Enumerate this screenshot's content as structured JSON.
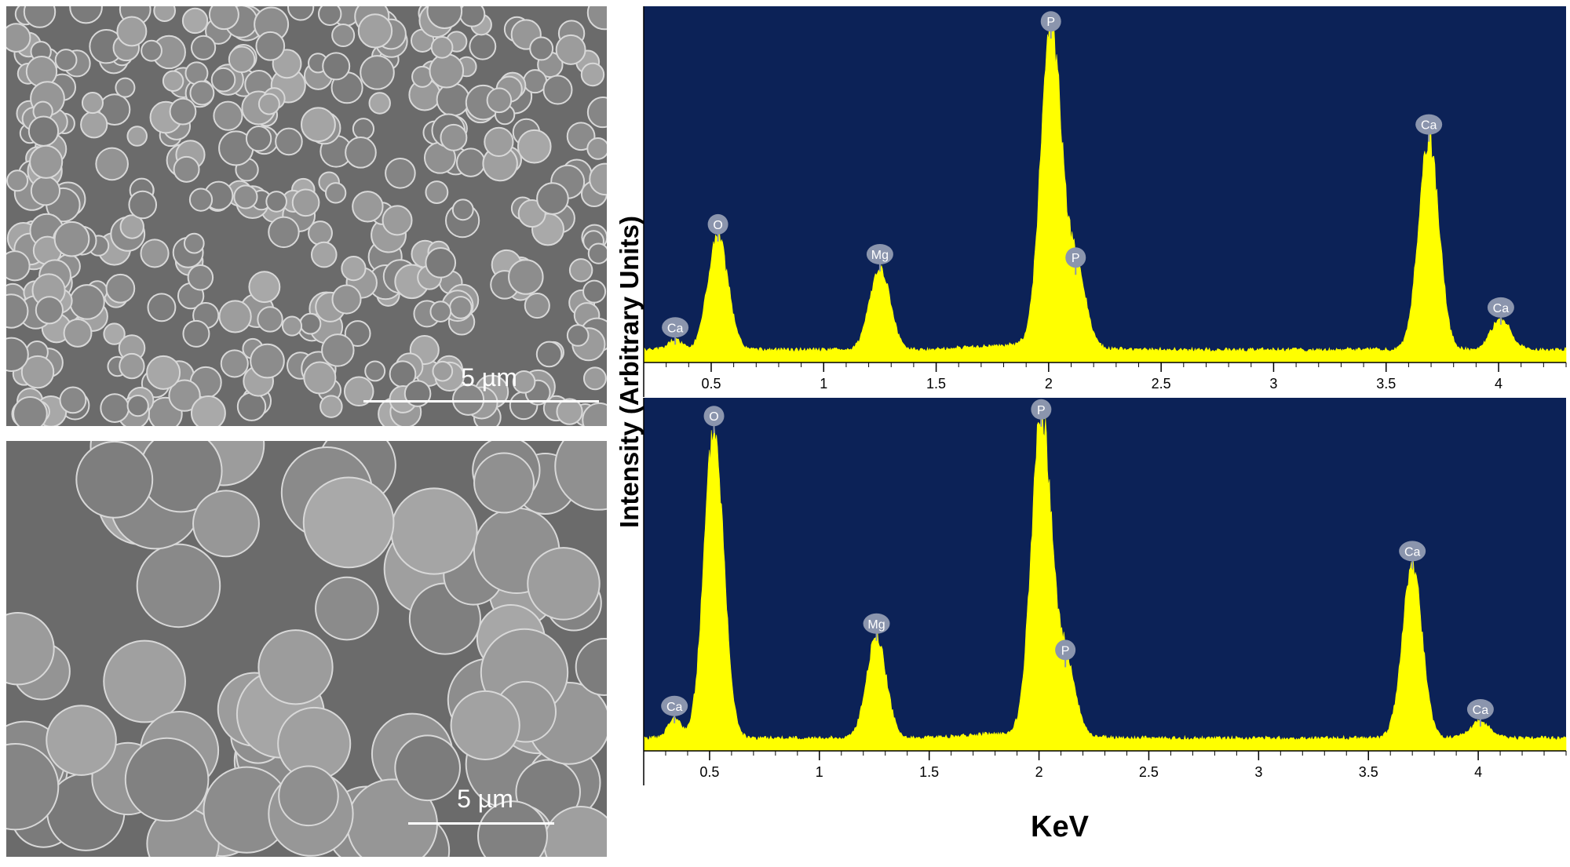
{
  "figure": {
    "ylabel": "Intensity (Arbitrary Units)",
    "xlabel": "KeV"
  },
  "sem_images": [
    {
      "scale_label": "5 µm"
    },
    {
      "scale_label": "5 µm"
    }
  ],
  "chart_data": [
    {
      "type": "area",
      "xlim": [
        0.2,
        4.3
      ],
      "ylim": [
        0,
        1
      ],
      "x_ticks": [
        "0.5",
        "1",
        "1.5",
        "2",
        "2.5",
        "3",
        "3.5",
        "4"
      ],
      "x_tick_values": [
        0.5,
        1,
        1.5,
        2,
        2.5,
        3,
        3.5,
        4
      ],
      "peaks": [
        {
          "element": "Ca",
          "x": 0.34,
          "y": 0.03
        },
        {
          "element": "O",
          "x": 0.53,
          "y": 0.34
        },
        {
          "element": "Mg",
          "x": 1.25,
          "y": 0.25
        },
        {
          "element": "P",
          "x": 2.01,
          "y": 0.95
        },
        {
          "element": "P",
          "x": 2.12,
          "y": 0.24
        },
        {
          "element": "Ca",
          "x": 3.69,
          "y": 0.64
        },
        {
          "element": "Ca",
          "x": 4.01,
          "y": 0.09
        }
      ],
      "colors": {
        "background": "#0c2257",
        "fill": "#ffff00",
        "label": "#8b95ad"
      }
    },
    {
      "type": "area",
      "xlim": [
        0.2,
        4.4
      ],
      "ylim": [
        0,
        1
      ],
      "x_ticks": [
        "0.5",
        "1",
        "1.5",
        "2",
        "2.5",
        "3",
        "3.5",
        "4"
      ],
      "x_tick_values": [
        0.5,
        1,
        1.5,
        2,
        2.5,
        3,
        3.5,
        4
      ],
      "peaks": [
        {
          "element": "Ca",
          "x": 0.34,
          "y": 0.06
        },
        {
          "element": "O",
          "x": 0.52,
          "y": 0.94
        },
        {
          "element": "Mg",
          "x": 1.26,
          "y": 0.31
        },
        {
          "element": "P",
          "x": 2.01,
          "y": 0.96
        },
        {
          "element": "P",
          "x": 2.12,
          "y": 0.23
        },
        {
          "element": "Ca",
          "x": 3.7,
          "y": 0.53
        },
        {
          "element": "Ca",
          "x": 4.01,
          "y": 0.05
        }
      ],
      "colors": {
        "background": "#0c2257",
        "fill": "#ffff00",
        "label": "#8b95ad"
      }
    }
  ]
}
